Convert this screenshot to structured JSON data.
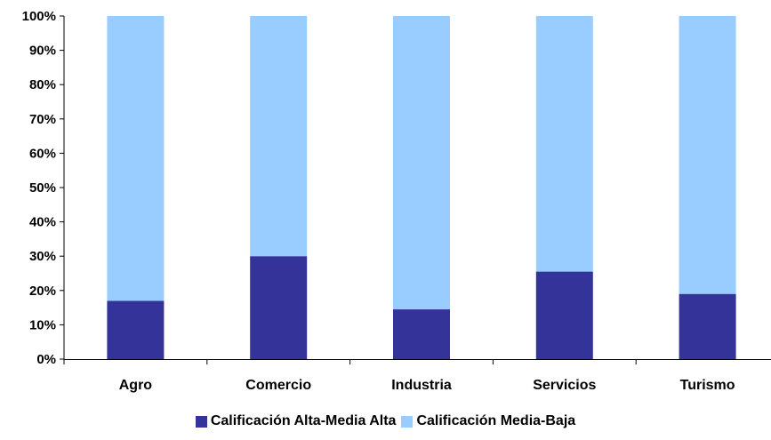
{
  "chart_data": {
    "type": "bar",
    "stacked": true,
    "percent_stacked": true,
    "categories": [
      "Agro",
      "Comercio",
      "Industria",
      "Servicios",
      "Turismo"
    ],
    "series": [
      {
        "name": "Calificación Alta-Media Alta",
        "color": "#333399",
        "values": [
          17,
          30,
          14.5,
          25.5,
          19
        ]
      },
      {
        "name": "Calificación Media-Baja",
        "color": "#99ccff",
        "values": [
          83,
          70,
          85.5,
          74.5,
          81
        ]
      }
    ],
    "ylim": [
      0,
      100
    ],
    "yticks": [
      "0%",
      "10%",
      "20%",
      "30%",
      "40%",
      "50%",
      "60%",
      "70%",
      "80%",
      "90%",
      "100%"
    ],
    "grid": false,
    "legend_position": "bottom",
    "title": "",
    "xlabel": "",
    "ylabel": ""
  }
}
